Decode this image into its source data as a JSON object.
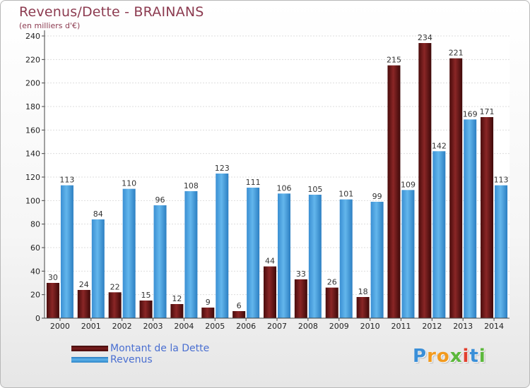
{
  "chart_data": {
    "type": "bar",
    "title": "Revenus/Dette - BRAINANS",
    "subtitle": "(en milliers d'€)",
    "categories": [
      "2000",
      "2001",
      "2002",
      "2003",
      "2004",
      "2005",
      "2006",
      "2007",
      "2008",
      "2009",
      "2010",
      "2011",
      "2012",
      "2013",
      "2014"
    ],
    "series": [
      {
        "name": "Montant de la Dette",
        "color": "#6b1616",
        "values": [
          30,
          24,
          22,
          15,
          12,
          9,
          6,
          44,
          33,
          26,
          18,
          215,
          234,
          221,
          171
        ]
      },
      {
        "name": "Revenus",
        "color": "#4aa3e0",
        "values": [
          113,
          84,
          110,
          96,
          108,
          123,
          111,
          106,
          105,
          101,
          99,
          109,
          142,
          169,
          113
        ]
      }
    ],
    "yticks": [
      0,
      20,
      40,
      60,
      80,
      100,
      120,
      140,
      160,
      180,
      200,
      220,
      240
    ],
    "ylim": [
      0,
      240
    ],
    "grid": true,
    "legend_position": "bottom-left"
  },
  "branding": {
    "logo_text": "Proxiti"
  }
}
